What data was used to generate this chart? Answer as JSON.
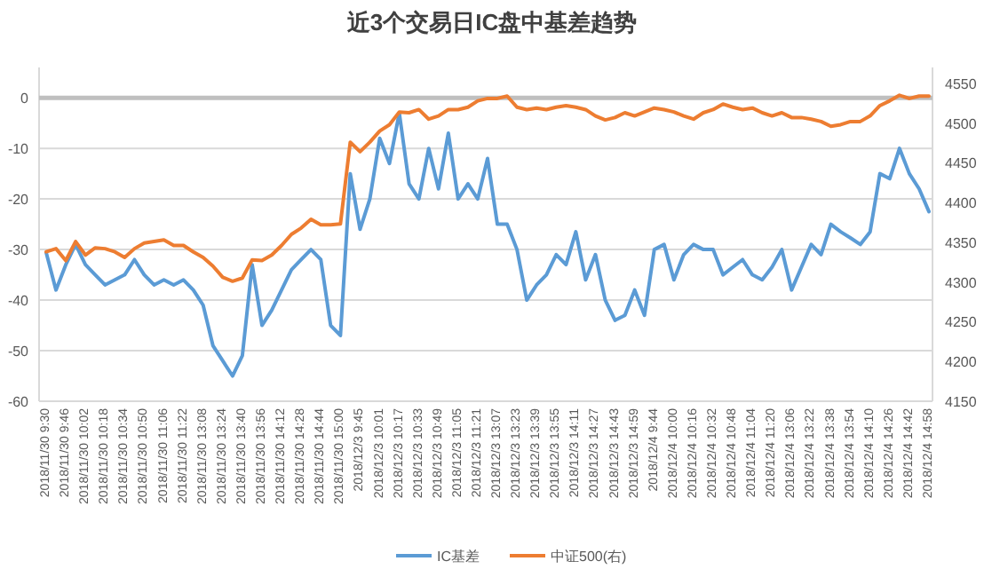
{
  "chart_data": {
    "type": "line",
    "title": "近3个交易日IC盘中基差趋势",
    "categories": [
      "2018/11/30 9:30",
      null,
      "2018/11/30 9:46",
      null,
      "2018/11/30 10:02",
      null,
      "2018/11/30 10:18",
      null,
      "2018/11/30 10:34",
      null,
      "2018/11/30 10:50",
      null,
      "2018/11/30 11:06",
      null,
      "2018/11/30 11:22",
      null,
      "2018/11/30 13:08",
      null,
      "2018/11/30 13:24",
      null,
      "2018/11/30 13:40",
      null,
      "2018/11/30 13:56",
      null,
      "2018/11/30 14:12",
      null,
      "2018/11/30 14:28",
      null,
      "2018/11/30 14:44",
      null,
      "2018/11/30 15:00",
      null,
      "2018/12/3 9:45",
      null,
      "2018/12/3 10:01",
      null,
      "2018/12/3 10:17",
      null,
      "2018/12/3 10:33",
      null,
      "2018/12/3 10:49",
      null,
      "2018/12/3 11:05",
      null,
      "2018/12/3 11:21",
      null,
      "2018/12/3 13:07",
      null,
      "2018/12/3 13:23",
      null,
      "2018/12/3 13:39",
      null,
      "2018/12/3 13:55",
      null,
      "2018/12/3 14:11",
      null,
      "2018/12/3 14:27",
      null,
      "2018/12/3 14:43",
      null,
      "2018/12/3 14:59",
      null,
      "2018/12/4 9:44",
      null,
      "2018/12/4 10:00",
      null,
      "2018/12/4 10:16",
      null,
      "2018/12/4 10:32",
      null,
      "2018/12/4 10:48",
      null,
      "2018/12/4 11:04",
      null,
      "2018/12/4 11:20",
      null,
      "2018/12/4 13:06",
      null,
      "2018/12/4 13:22",
      null,
      "2018/12/4 13:38",
      null,
      "2018/12/4 13:54",
      null,
      "2018/12/4 14:10",
      null,
      "2018/12/4 14:26",
      null,
      "2018/12/4 14:42",
      null,
      "2018/12/4 14:58"
    ],
    "series": [
      {
        "name": "IC基差",
        "color": "#5b9bd5",
        "values": [
          -30.6,
          -38,
          -33,
          -29,
          -33,
          -35,
          -37,
          -36,
          -35,
          -32,
          -35,
          -37,
          -36,
          -37,
          -36,
          -38,
          -41,
          -49,
          -52,
          -55,
          -51,
          -33,
          -45,
          -42,
          -38,
          -34,
          -32,
          -30,
          -32,
          -45,
          -47,
          -15,
          -26,
          -20,
          -8,
          -13,
          -3,
          -17,
          -20,
          -10,
          -18,
          -7,
          -20,
          -17,
          -20,
          -12,
          -25,
          -25,
          -30,
          -40,
          -37,
          -35,
          -31,
          -33,
          -26.5,
          -36,
          -31,
          -40,
          -44,
          -43,
          -38,
          -43,
          -30,
          -29,
          -36,
          -31,
          -29,
          -30,
          -30,
          -35,
          -33.5,
          -32,
          -35,
          -36,
          -33.5,
          -30,
          -38,
          -33.5,
          -29,
          -31,
          -25,
          -26.5,
          -27.7,
          -29,
          -26.5,
          -15,
          -16,
          -10,
          -15,
          -18,
          -22.5
        ]
      },
      {
        "name": "中证500(右)",
        "color": "#ed7d31",
        "axis": "y2",
        "values": [
          4338,
          4342,
          4327,
          4351,
          4334,
          4343,
          4342,
          4338,
          4331,
          4342,
          4349,
          4351,
          4353,
          4346,
          4346,
          4338,
          4331,
          4320,
          4306,
          4301,
          4305,
          4328,
          4327,
          4334,
          4346,
          4360,
          4368,
          4379,
          4372,
          4372,
          4373,
          4476,
          4464,
          4476,
          4490,
          4498,
          4514,
          4513,
          4517,
          4505,
          4509,
          4517,
          4517,
          4520,
          4528,
          4531,
          4531,
          4534,
          4520,
          4517,
          4519,
          4517,
          4520,
          4522,
          4520,
          4517,
          4509,
          4504,
          4507,
          4513,
          4509,
          4514,
          4519,
          4517,
          4514,
          4509,
          4505,
          4513,
          4517,
          4524,
          4520,
          4517,
          4519,
          4513,
          4509,
          4513,
          4507,
          4507,
          4505,
          4502,
          4496,
          4498,
          4502,
          4502,
          4509,
          4522,
          4528,
          4535,
          4531,
          4534,
          4534
        ]
      }
    ],
    "ylim": [
      -60,
      6
    ],
    "yticks": [
      -60,
      -50,
      -40,
      -30,
      -20,
      -10,
      0
    ],
    "y2lim": [
      4150,
      4570
    ],
    "y2ticks": [
      4150,
      4200,
      4250,
      4300,
      4350,
      4400,
      4450,
      4500,
      4550
    ],
    "ref_lines": [
      {
        "axis": "y",
        "value": 0,
        "color": "#bfbfbf"
      }
    ],
    "grid": "y",
    "legend": "bottom"
  }
}
